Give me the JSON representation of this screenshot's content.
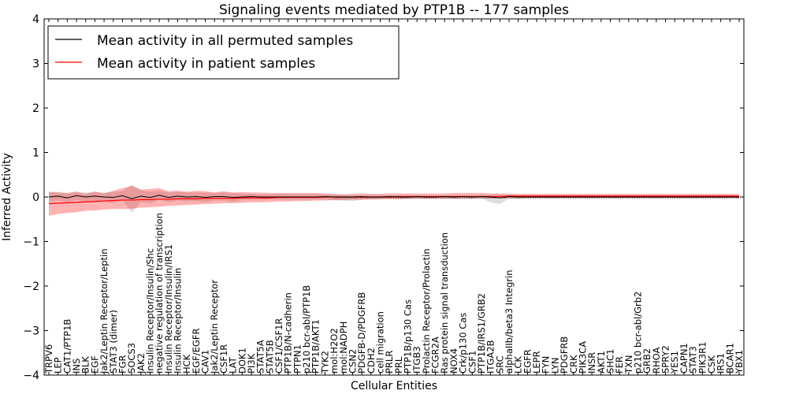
{
  "chart_data": {
    "type": "line",
    "title": "Signaling events mediated by PTP1B -- 177 samples",
    "xlabel": "Cellular Entities",
    "ylabel": "Inferred Activity",
    "ylim": [
      -4,
      4
    ],
    "yticks": [
      4,
      3,
      2,
      1,
      0,
      -1,
      -2,
      -3,
      -4
    ],
    "ytick_labels": [
      "4",
      "3",
      "2",
      "1",
      "0",
      "−1",
      "−2",
      "−3",
      "−4"
    ],
    "legend": {
      "placement": "top-left",
      "entries": [
        "Mean activity in all permuted samples",
        "Mean activity in patient samples"
      ]
    },
    "categories": [
      "TRPV6",
      "LEP",
      "CAT1/PTP1B",
      "INS",
      "BLK",
      "EGF",
      "Jak2/Leptin Receptor/Leptin",
      "STAT3 (dimer)",
      "FGR",
      "SOCS3",
      "JAK2",
      "Insulin Receptor/Insulin/Shc",
      "negative regulation of transcription",
      "Insulin Receptor/Insulin/IRS1",
      "Insulin Receptor/Insulin",
      "HCK",
      "EGF/EGFR",
      "CAV1",
      "Jak2/Leptin Receptor",
      "CSF1R",
      "LAT",
      "DOK1",
      "PI3K",
      "STAT5A",
      "STAT5B",
      "CSF1/CSF1R",
      "PTP1B/N-cadherin",
      "PTPN1",
      "p210 bcr-abl/PTP1B",
      "PTP1B/AKT1",
      "TYK2",
      "mol:H2O2",
      "mol:NADPH",
      "CSN2",
      "PDGFB-D/PDGFRB",
      "CDH2",
      "cell migration",
      "PRLR",
      "PRL",
      "PTP1B/p130 Cas",
      "ITGB3",
      "Prolactin Receptor/Prolactin",
      "FCGR2A",
      "Ras protein signal transduction",
      "NOX4",
      "Crk/p130 Cas",
      "CSF1",
      "PTP1B/IRS1/GRB2",
      "ITGA2B",
      "SRC",
      "alphaIIb/beta3 Integrin",
      "LCK",
      "EGFR",
      "LEPR",
      "FYN",
      "LYN",
      "PDGFRB",
      "CRK",
      "PIK3CA",
      "INSR",
      "AKT1",
      "SHC1",
      "FER",
      "TXN",
      "p210 bcr-abl/Grb2",
      "GRB2",
      "RHOA",
      "SPRY2",
      "YES1",
      "CAPN1",
      "STAT3",
      "PIK3R1",
      "CSK",
      "IRS1",
      "BCAR1",
      "YBX1"
    ],
    "series": [
      {
        "name": "Mean activity in all permuted samples",
        "color": "#000000",
        "values": [
          0.0,
          0.02,
          -0.02,
          0.03,
          0.0,
          0.02,
          0.0,
          -0.01,
          0.03,
          -0.04,
          0.02,
          -0.01,
          0.04,
          -0.01,
          0.02,
          0.0,
          0.01,
          -0.01,
          0.01,
          0.01,
          -0.01,
          0.0,
          0.01,
          0.0,
          0.0,
          0.0,
          0.0,
          0.0,
          0.0,
          0.0,
          0.01,
          0.0,
          0.0,
          0.0,
          0.01,
          0.0,
          0.0,
          0.01,
          0.0,
          0.0,
          0.01,
          0.0,
          0.0,
          0.01,
          0.0,
          0.01,
          0.0,
          0.01,
          0.0,
          -0.02,
          0.01,
          0.0,
          0.0,
          0.0,
          0.0,
          0.0,
          0.0,
          0.0,
          0.0,
          0.0,
          0.0,
          0.0,
          0.0,
          0.0,
          0.0,
          0.0,
          0.0,
          0.0,
          0.0,
          0.0,
          0.0,
          0.0,
          0.0,
          0.0,
          0.0,
          0.0
        ],
        "band_upper": [
          0.1,
          0.12,
          0.08,
          0.13,
          0.1,
          0.12,
          0.1,
          0.12,
          0.13,
          0.27,
          0.15,
          0.12,
          0.14,
          0.1,
          0.12,
          0.1,
          0.1,
          0.1,
          0.1,
          0.1,
          0.09,
          0.07,
          0.07,
          0.06,
          0.06,
          0.06,
          0.06,
          0.06,
          0.06,
          0.06,
          0.06,
          0.05,
          0.05,
          0.04,
          0.04,
          0.04,
          0.04,
          0.04,
          0.04,
          0.04,
          0.04,
          0.04,
          0.04,
          0.04,
          0.04,
          0.04,
          0.04,
          0.05,
          0.04,
          0.05,
          0.04,
          0.04,
          0.04,
          0.04,
          0.04,
          0.04,
          0.04,
          0.04,
          0.04,
          0.04,
          0.04,
          0.04,
          0.04,
          0.04,
          0.04,
          0.04,
          0.04,
          0.04,
          0.04,
          0.04,
          0.04,
          0.04,
          0.04,
          0.04,
          0.04,
          0.04
        ],
        "band_lower": [
          -0.1,
          -0.08,
          -0.12,
          -0.07,
          -0.1,
          -0.08,
          -0.1,
          -0.14,
          -0.07,
          -0.35,
          -0.11,
          -0.14,
          -0.06,
          -0.12,
          -0.08,
          -0.1,
          -0.09,
          -0.12,
          -0.08,
          -0.08,
          -0.11,
          -0.07,
          -0.06,
          -0.06,
          -0.06,
          -0.06,
          -0.06,
          -0.06,
          -0.06,
          -0.06,
          -0.05,
          -0.07,
          -0.08,
          -0.09,
          -0.06,
          -0.04,
          -0.04,
          -0.03,
          -0.04,
          -0.04,
          -0.03,
          -0.04,
          -0.04,
          -0.03,
          -0.04,
          -0.03,
          -0.05,
          -0.04,
          -0.12,
          -0.16,
          -0.03,
          -0.04,
          -0.04,
          -0.04,
          -0.04,
          -0.04,
          -0.04,
          -0.04,
          -0.04,
          -0.04,
          -0.04,
          -0.04,
          -0.04,
          -0.04,
          -0.04,
          -0.04,
          -0.04,
          -0.04,
          -0.04,
          -0.04,
          -0.04,
          -0.04,
          -0.04,
          -0.04,
          -0.04,
          -0.04
        ]
      },
      {
        "name": "Mean activity in patient samples",
        "color": "#ff0000",
        "values": [
          -0.15,
          -0.14,
          -0.13,
          -0.12,
          -0.11,
          -0.1,
          -0.09,
          -0.08,
          -0.07,
          -0.07,
          -0.06,
          -0.06,
          -0.05,
          -0.05,
          -0.04,
          -0.04,
          -0.04,
          -0.03,
          -0.03,
          -0.03,
          -0.03,
          -0.02,
          -0.02,
          -0.02,
          -0.02,
          -0.01,
          -0.01,
          -0.01,
          -0.01,
          -0.01,
          0.0,
          0.0,
          0.0,
          0.0,
          0.0,
          0.0,
          0.0,
          0.0,
          0.01,
          0.01,
          0.01,
          0.01,
          0.01,
          0.01,
          0.01,
          0.01,
          0.01,
          0.01,
          0.01,
          0.01,
          0.02,
          0.02,
          0.02,
          0.02,
          0.02,
          0.02,
          0.02,
          0.02,
          0.02,
          0.02,
          0.02,
          0.02,
          0.02,
          0.02,
          0.02,
          0.02,
          0.02,
          0.02,
          0.02,
          0.02,
          0.02,
          0.02,
          0.02,
          0.02,
          0.02,
          0.02
        ],
        "band_upper": [
          0.12,
          0.1,
          0.09,
          0.11,
          0.07,
          0.12,
          0.08,
          0.14,
          0.2,
          0.25,
          0.17,
          0.18,
          0.2,
          0.13,
          0.14,
          0.12,
          0.14,
          0.13,
          0.1,
          0.13,
          0.1,
          0.11,
          0.1,
          0.1,
          0.09,
          0.09,
          0.09,
          0.09,
          0.09,
          0.09,
          0.08,
          0.07,
          0.06,
          0.07,
          0.08,
          0.07,
          0.07,
          0.08,
          0.08,
          0.08,
          0.08,
          0.08,
          0.08,
          0.08,
          0.09,
          0.09,
          0.09,
          0.09,
          0.08,
          0.08,
          0.08,
          0.07,
          0.07,
          0.07,
          0.07,
          0.07,
          0.07,
          0.07,
          0.07,
          0.07,
          0.07,
          0.07,
          0.07,
          0.07,
          0.07,
          0.07,
          0.07,
          0.07,
          0.07,
          0.07,
          0.07,
          0.07,
          0.07,
          0.07,
          0.07,
          0.07
        ],
        "band_lower": [
          -0.42,
          -0.38,
          -0.36,
          -0.34,
          -0.31,
          -0.3,
          -0.28,
          -0.27,
          -0.27,
          -0.26,
          -0.24,
          -0.23,
          -0.22,
          -0.2,
          -0.19,
          -0.18,
          -0.17,
          -0.16,
          -0.15,
          -0.14,
          -0.14,
          -0.13,
          -0.12,
          -0.12,
          -0.11,
          -0.1,
          -0.1,
          -0.09,
          -0.09,
          -0.08,
          -0.08,
          -0.07,
          -0.07,
          -0.06,
          -0.06,
          -0.06,
          -0.05,
          -0.05,
          -0.05,
          -0.04,
          -0.04,
          -0.04,
          -0.04,
          -0.04,
          -0.04,
          -0.04,
          -0.03,
          -0.03,
          -0.03,
          -0.03,
          -0.03,
          -0.03,
          -0.02,
          -0.02,
          -0.02,
          -0.02,
          -0.02,
          -0.02,
          -0.02,
          -0.02,
          -0.02,
          -0.02,
          -0.02,
          -0.02,
          -0.02,
          -0.02,
          -0.02,
          -0.02,
          -0.02,
          -0.02,
          -0.02,
          -0.02,
          -0.02,
          -0.02,
          -0.02,
          -0.02
        ]
      }
    ]
  }
}
